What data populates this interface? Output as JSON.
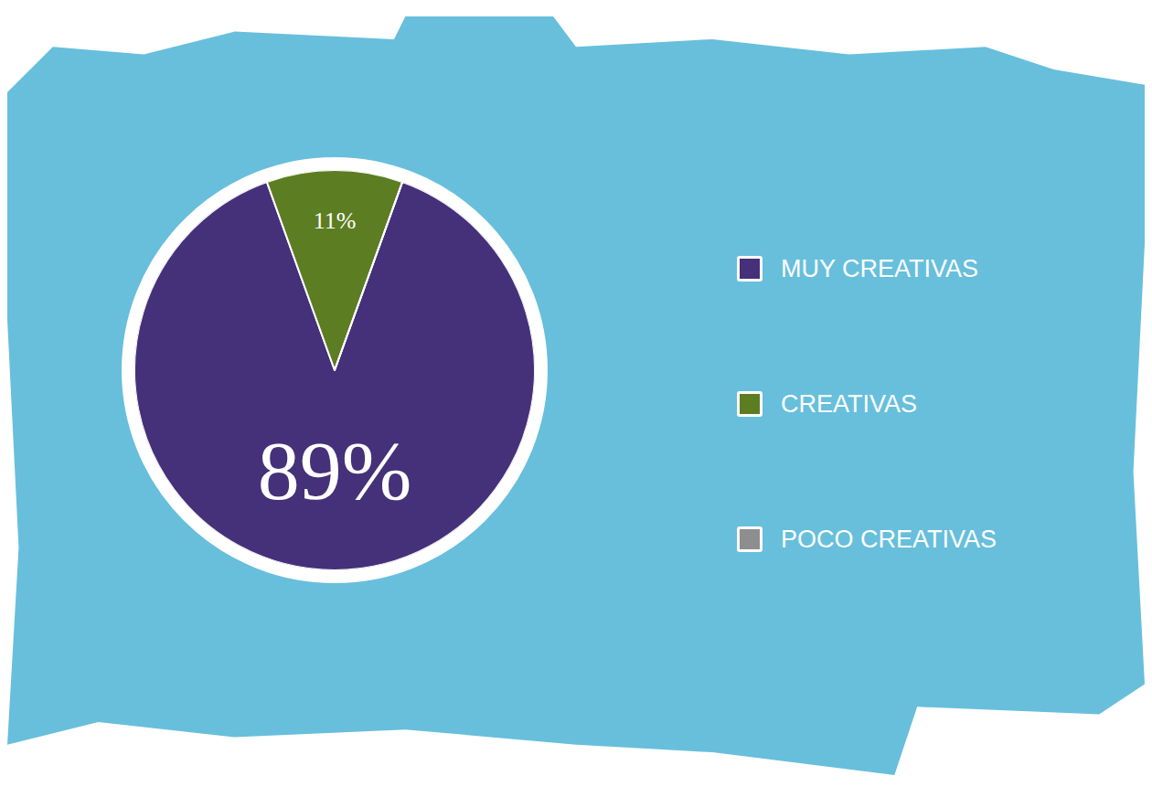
{
  "chart_data": {
    "type": "pie",
    "categories": [
      "MUY CREATIVAS",
      "CREATIVAS",
      "POCO CREATIVAS"
    ],
    "values": [
      89,
      11,
      0
    ],
    "value_labels": [
      "89%",
      "11%",
      null
    ],
    "colors": [
      "#45307a",
      "#5c7d22",
      "#8e8e8e"
    ],
    "data_labels": true,
    "legend": "right"
  }
}
